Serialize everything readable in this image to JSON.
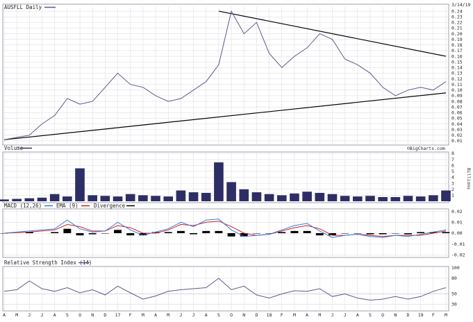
{
  "chart_data": [
    {
      "panel": "price",
      "type": "line",
      "title": "AUSFLL Daily",
      "date_label": "3/14/19",
      "color": "#5a5a8c",
      "y_axis_side": "right",
      "ylim": [
        0.005,
        0.245
      ],
      "y_ticks": [
        "0.24",
        "0.23",
        "0.22",
        "0.21",
        "0.20",
        "0.19",
        "0.18",
        "0.17",
        "0.16",
        "0.15",
        "0.14",
        "0.13",
        "0.12",
        "0.11",
        "0.10",
        "0.09",
        "0.08",
        "0.07",
        "0.06",
        "0.05",
        "0.04",
        "0.03",
        "0.02",
        "0.01"
      ],
      "x_tick_labels": [
        "A",
        "M",
        "J",
        "J",
        "A",
        "S",
        "O",
        "N",
        "D",
        "17",
        "F",
        "M",
        "A",
        "M",
        "J",
        "J",
        "A",
        "S",
        "O",
        "N",
        "D",
        "18",
        "F",
        "M",
        "A",
        "M",
        "J",
        "J",
        "A",
        "S",
        "O",
        "N",
        "D",
        "19",
        "F",
        "M"
      ],
      "series": [
        {
          "x": [
            0,
            2,
            3,
            4,
            5,
            6,
            7,
            8,
            9,
            10,
            11,
            12,
            13,
            14,
            15,
            16,
            17,
            18,
            19,
            20,
            21,
            22,
            23,
            24,
            25,
            26,
            27,
            28,
            29,
            30,
            31,
            32,
            33,
            34,
            35
          ],
          "y": [
            0.012,
            0.02,
            0.04,
            0.055,
            0.085,
            0.075,
            0.08,
            0.105,
            0.13,
            0.11,
            0.105,
            0.09,
            0.08,
            0.085,
            0.1,
            0.115,
            0.145,
            0.24,
            0.2,
            0.22,
            0.165,
            0.14,
            0.16,
            0.175,
            0.2,
            0.19,
            0.155,
            0.145,
            0.13,
            0.105,
            0.09,
            0.1,
            0.105,
            0.1,
            0.115
          ]
        }
      ],
      "trendlines": [
        {
          "color": "#000000",
          "points": [
            [
              0,
              0.012
            ],
            [
              35,
              0.095
            ]
          ]
        },
        {
          "color": "#000000",
          "points": [
            [
              17,
              0.24
            ],
            [
              35,
              0.16
            ]
          ]
        }
      ]
    },
    {
      "panel": "volume",
      "type": "bar",
      "title": "Volume",
      "watermark": "©BigCharts.com",
      "color": "#2e2e66",
      "y_axis_side": "right",
      "y_unit_label": "Billions",
      "ylim": [
        0,
        8
      ],
      "y_ticks": [
        "8",
        "7",
        "6",
        "5",
        "4",
        "3",
        "2",
        "1"
      ],
      "x": [
        0,
        1,
        2,
        3,
        4,
        5,
        6,
        7,
        8,
        9,
        10,
        11,
        12,
        13,
        14,
        15,
        16,
        17,
        18,
        19,
        20,
        21,
        22,
        23,
        24,
        25,
        26,
        27,
        28,
        29,
        30,
        31,
        32,
        33,
        34,
        35
      ],
      "values": [
        0.3,
        0.4,
        0.5,
        0.6,
        1.2,
        0.8,
        5.5,
        1.0,
        0.9,
        0.8,
        1.2,
        1.0,
        0.9,
        0.8,
        1.8,
        1.5,
        1.4,
        6.5,
        3.2,
        2.0,
        1.5,
        1.2,
        1.0,
        1.3,
        1.6,
        1.4,
        1.2,
        0.9,
        0.8,
        0.9,
        0.7,
        0.7,
        0.9,
        0.8,
        1.0,
        1.8
      ]
    },
    {
      "panel": "macd",
      "type": "line",
      "title": "MACD (12,26)",
      "legend": [
        {
          "name": "MACD (12,26)",
          "color": "#3a7adf"
        },
        {
          "name": "EMA (9)",
          "color": "#cc2222"
        },
        {
          "name": "Divergence",
          "color": "#000000"
        }
      ],
      "y_axis_side": "right",
      "ylim": [
        -0.021,
        0.021
      ],
      "y_ticks": [
        "0.02",
        "0.01",
        "0.00",
        "-0.01",
        "-0.02"
      ],
      "series": [
        {
          "name": "MACD (12,26)",
          "color": "#3a7adf",
          "x": [
            0,
            2,
            4,
            5,
            6,
            7,
            8,
            9,
            10,
            11,
            12,
            13,
            14,
            15,
            16,
            17,
            18,
            19,
            20,
            21,
            22,
            23,
            24,
            25,
            26,
            27,
            28,
            29,
            30,
            31,
            32,
            33,
            34,
            35
          ],
          "y": [
            0,
            0.002,
            0.004,
            0.012,
            0.004,
            0.001,
            0.002,
            0.01,
            0.003,
            -0.002,
            0.001,
            0.004,
            0.01,
            0.006,
            0.012,
            0.013,
            0.003,
            -0.003,
            -0.002,
            -0.001,
            0.003,
            0.007,
            0.009,
            0.002,
            -0.004,
            -0.002,
            -0.001,
            -0.003,
            -0.004,
            -0.002,
            -0.003,
            -0.001,
            0.001,
            0.003
          ]
        },
        {
          "name": "EMA (9)",
          "color": "#cc2222",
          "x": [
            0,
            2,
            4,
            5,
            6,
            7,
            8,
            9,
            10,
            11,
            12,
            13,
            14,
            15,
            16,
            17,
            18,
            19,
            20,
            21,
            22,
            23,
            24,
            25,
            26,
            27,
            28,
            29,
            30,
            31,
            32,
            33,
            34,
            35
          ],
          "y": [
            0,
            0.001,
            0.003,
            0.008,
            0.006,
            0.002,
            0.002,
            0.007,
            0.005,
            0,
            0,
            0.003,
            0.008,
            0.007,
            0.01,
            0.011,
            0.006,
            0,
            -0.002,
            -0.001,
            0.002,
            0.005,
            0.007,
            0.004,
            -0.002,
            -0.002,
            -0.001,
            -0.002,
            -0.003,
            -0.002,
            -0.002,
            -0.002,
            0,
            0.002
          ]
        }
      ],
      "divergence": {
        "name": "Divergence",
        "color": "#000000",
        "x": [
          0,
          2,
          4,
          5,
          6,
          7,
          8,
          9,
          10,
          11,
          12,
          13,
          14,
          15,
          16,
          17,
          18,
          19,
          20,
          21,
          22,
          23,
          24,
          25,
          26,
          27,
          28,
          29,
          30,
          31,
          32,
          33,
          34,
          35
        ],
        "values": [
          0,
          0.001,
          0.001,
          0.004,
          -0.002,
          -0.001,
          0,
          0.003,
          -0.002,
          -0.002,
          0.001,
          0.001,
          0.002,
          -0.001,
          0.002,
          0.002,
          -0.003,
          -0.003,
          0,
          0,
          0.001,
          0.002,
          0.002,
          -0.002,
          -0.002,
          0,
          0,
          -0.001,
          -0.001,
          0,
          -0.001,
          0.001,
          0.001,
          0.001
        ]
      }
    },
    {
      "panel": "rsi",
      "type": "line",
      "title": "Relative Strength Index (14)",
      "color": "#5a5a8c",
      "y_axis_side": "right",
      "ylim": [
        20,
        100
      ],
      "y_ticks": [
        "100",
        "80",
        "50",
        "30"
      ],
      "reference_lines": [
        30,
        50,
        80
      ],
      "series": [
        {
          "x": [
            0,
            1,
            2,
            3,
            4,
            5,
            6,
            7,
            8,
            9,
            10,
            11,
            12,
            13,
            14,
            15,
            16,
            17,
            18,
            19,
            20,
            21,
            22,
            23,
            24,
            25,
            26,
            27,
            28,
            29,
            30,
            31,
            32,
            33,
            34,
            35
          ],
          "y": [
            55,
            58,
            75,
            60,
            55,
            62,
            52,
            58,
            48,
            65,
            52,
            40,
            46,
            55,
            58,
            60,
            62,
            80,
            58,
            65,
            48,
            42,
            50,
            56,
            55,
            60,
            45,
            50,
            42,
            38,
            40,
            45,
            40,
            45,
            55,
            62
          ]
        }
      ]
    }
  ]
}
